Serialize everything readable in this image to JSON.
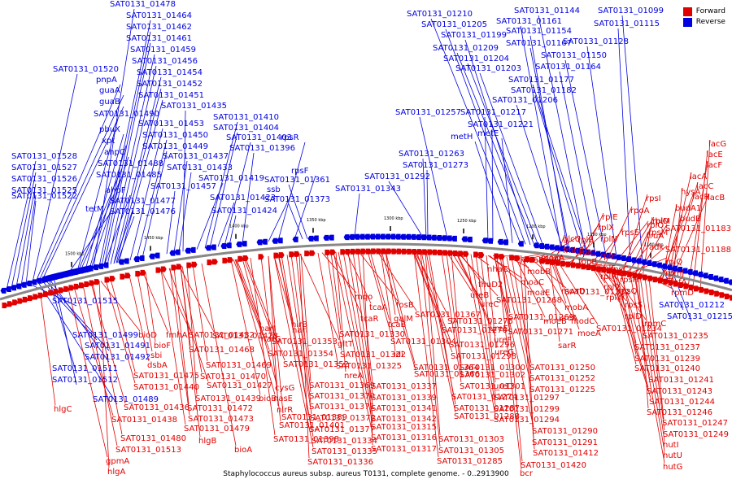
{
  "legend": {
    "forward": "Forward",
    "reverse": "Reverse",
    "forward_color": "#e00000",
    "reverse_color": "#0000e0"
  },
  "caption": "Staphylococcus aureus subsp. aureus T0131, complete genome. - 0..2913900",
  "ticks": [
    "1100 kbp",
    "1150 kbp",
    "1200 kbp",
    "1250 kbp",
    "1300 kbp",
    "1350 kbp",
    "1400 kbp",
    "1450 kbp",
    "1500 kbp"
  ],
  "reverse_labels": [
    "SAT0131_01478",
    "SAT0131_01464",
    "SAT0131_01462",
    "SAT0131_01461",
    "SAT0131_01459",
    "SAT0131_01456",
    "SAT0131_01454",
    "SAT0131_01452",
    "SAT0131_01451",
    "SAT0131_01435",
    "SAT0131_01520",
    "pnpA",
    "guaA",
    "guaB",
    "SAT0131_01490",
    "pbuX",
    "xpt",
    "ahpC",
    "SAT0131_01488",
    "SAT0131_01485",
    "ahpF",
    "SAT0131_01477",
    "SAT0131_01476",
    "tetM",
    "SAT0131_01528",
    "SAT0131_01527",
    "SAT0131_01526",
    "SAT0131_01525",
    "SAT0131_01522",
    "SAT0131_01453",
    "SAT0131_01450",
    "SAT0131_01449",
    "SAT0131_01437",
    "SAT0131_01433",
    "SAT0131_01457",
    "SAT0131_01410",
    "SAT0131_01404",
    "SAT0131_01403",
    "SAT0131_01396",
    "rpsR",
    "rpsF",
    "ssb",
    "SAT0131_01419",
    "SAT0131_01423",
    "SAT0131_01424",
    "SAT0131_01361",
    "SAT0131_01373",
    "SAT0131_01210",
    "SAT0131_01205",
    "SAT0131_01199",
    "SAT0131_01209",
    "SAT0131_01204",
    "SAT0131_01203",
    "SAT0131_01161",
    "SAT0131_01154",
    "SAT0131_01167",
    "SAT0131_01144",
    "SAT0131_01099",
    "SAT0131_01115",
    "SAT0131_01128",
    "SAT0131_01150",
    "SAT0131_01164",
    "SAT0131_01177",
    "SAT0131_01182",
    "SAT0131_01206",
    "SAT0131_01257",
    "SAT0131_01217",
    "SAT0131_01221",
    "metH",
    "metE",
    "SAT0131_01263",
    "SAT0131_01273",
    "SAT0131_01292",
    "SAT0131_01343",
    "SAT0131_01515",
    "SAT0131_01499",
    "SAT0131_01491",
    "SAT0131_01492",
    "SAT0131_01511",
    "SAT0131_01512",
    "SAT0131_01489",
    "SAT0131_01212",
    "SAT0131_01215"
  ],
  "forward_labels": [
    "lacG",
    "lacE",
    "lacF",
    "lacA",
    "lacC",
    "lacR",
    "lacB",
    "hysA",
    "budA1",
    "budB",
    "rpsI",
    "rpoA",
    "rplM",
    "rplQ",
    "cbiO",
    "rpsM",
    "truA",
    "adk",
    "SAT0131_01183",
    "SAT0131_01188",
    "rplQ",
    "rpmJ",
    "infA",
    "rpmD",
    "rplE",
    "rplX",
    "rplN",
    "rplB",
    "rplC",
    "rplP",
    "rplF",
    "rplR",
    "rpsE",
    "rpsC",
    "rpsH",
    "rplV",
    "rplW",
    "rpsQ",
    "rpsS",
    "rplD",
    "rpmC",
    "topB",
    "glcU",
    "fmhB",
    "sarY",
    "moaA",
    "moaB",
    "moaC",
    "moaE",
    "moaD",
    "mobA",
    "mobB",
    "moeA",
    "moeB",
    "modC",
    "ureA",
    "sarR",
    "nhaC",
    "fhuD2",
    "ureB",
    "ureC",
    "ureE",
    "ureF",
    "ureG",
    "ureD",
    "SAT0131_01297",
    "SAT0131_01299",
    "SAT0131_01294",
    "SAT0131_01296",
    "SAT0131_01298",
    "SAT0131_01300",
    "SAT0131_01302",
    "SAT0131_01301",
    "SAT0131_01274",
    "SAT0131_01270",
    "SAT0131_01275",
    "SAT0131_01268",
    "SAT0131_01269",
    "SAT0131_01271",
    "SAT0131_01250",
    "SAT0131_01252",
    "SAT0131_01225",
    "SAT0131_01232",
    "SAT0131_01234",
    "SAT0131_01235",
    "SAT0131_01237",
    "SAT0131_01239",
    "SAT0131_01240",
    "SAT0131_01241",
    "SAT0131_01243",
    "SAT0131_01244",
    "SAT0131_01246",
    "SAT0131_01247",
    "SAT0131_01249",
    "hutI",
    "hutU",
    "hutG",
    "fosB",
    "galM",
    "idi",
    "tcaB",
    "tcaA",
    "tcaR",
    "mqo",
    "gltT",
    "nreA",
    "nirB",
    "narI",
    "narJ",
    "narG",
    "cysG",
    "nasE",
    "nirR",
    "SAT0131_01389",
    "SAT0131_01401",
    "SAT0131_01398",
    "SAT0131_01353",
    "SAT0131_01354",
    "SAT0131_01352",
    "SAT0131_01330",
    "SAT0131_01322",
    "SAT0131_01325",
    "SAT0131_01304",
    "SAT0131_01364",
    "SAT0131_01366",
    "SAT0131_01367",
    "SAT0131_01369",
    "SAT0131_01370",
    "SAT0131_01371",
    "SAT0131_01372",
    "SAT0131_01377",
    "SAT0131_01334",
    "SAT0131_01335",
    "SAT0131_01336",
    "SAT0131_01337",
    "SAT0131_01339",
    "SAT0131_01341",
    "SAT0131_01342",
    "SAT0131_01315",
    "SAT0131_01316",
    "SAT0131_01317",
    "SAT0131_01303",
    "SAT0131_01305",
    "SAT0131_01285",
    "SAT0131_01287",
    "SAT0131_01288",
    "SAT0131_01290",
    "SAT0131_01291",
    "SAT0131_01412",
    "SAT0131_01420",
    "bcr",
    "bioB",
    "bioA",
    "bioD",
    "bioF",
    "sbi",
    "dsbA",
    "fmhA",
    "SAT0131_01432",
    "SAT0131_01428",
    "SAT0131_01427",
    "SAT0131_01468",
    "SAT0131_01469",
    "SAT0131_01470",
    "SAT0131_01475",
    "SAT0131_01440",
    "SAT0131_01436",
    "SAT0131_01438",
    "SAT0131_01439",
    "SAT0131_01472",
    "SAT0131_01473",
    "SAT0131_01479",
    "SAT0131_01480",
    "SAT0131_01513",
    "gpmA",
    "hlgA",
    "hlgC",
    "hlgB"
  ]
}
